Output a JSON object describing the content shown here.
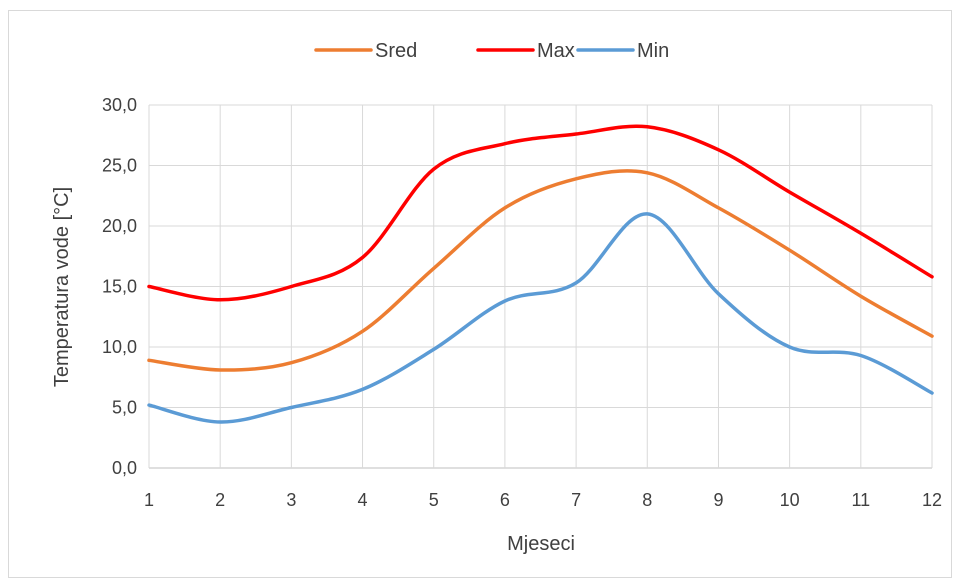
{
  "chart_data": {
    "type": "line",
    "x": [
      1,
      2,
      3,
      4,
      5,
      6,
      7,
      8,
      9,
      10,
      11,
      12
    ],
    "series": [
      {
        "name": "Sred",
        "color": "#ed7d31",
        "values": [
          8.9,
          8.1,
          8.7,
          11.3,
          16.5,
          21.5,
          23.9,
          24.4,
          21.5,
          18.0,
          14.2,
          10.9
        ]
      },
      {
        "name": "Max",
        "color": "#ff0000",
        "values": [
          15.0,
          13.9,
          15.0,
          17.4,
          24.7,
          26.8,
          27.6,
          28.2,
          26.3,
          22.8,
          19.4,
          15.8
        ]
      },
      {
        "name": "Min",
        "color": "#5b9bd5",
        "values": [
          5.2,
          3.8,
          5.0,
          6.5,
          9.8,
          13.8,
          15.3,
          21.0,
          14.4,
          10.0,
          9.3,
          6.2
        ]
      }
    ],
    "xlabel": "Mjeseci",
    "ylabel": "Temperatura vode [°C]",
    "ylim": [
      0,
      30
    ],
    "yticks": [
      "0,0",
      "5,0",
      "10,0",
      "15,0",
      "20,0",
      "25,0",
      "30,0"
    ],
    "xticks": [
      "1",
      "2",
      "3",
      "4",
      "5",
      "6",
      "7",
      "8",
      "9",
      "10",
      "11",
      "12"
    ],
    "grid": "both",
    "legend": "top-center",
    "smooth": true
  }
}
